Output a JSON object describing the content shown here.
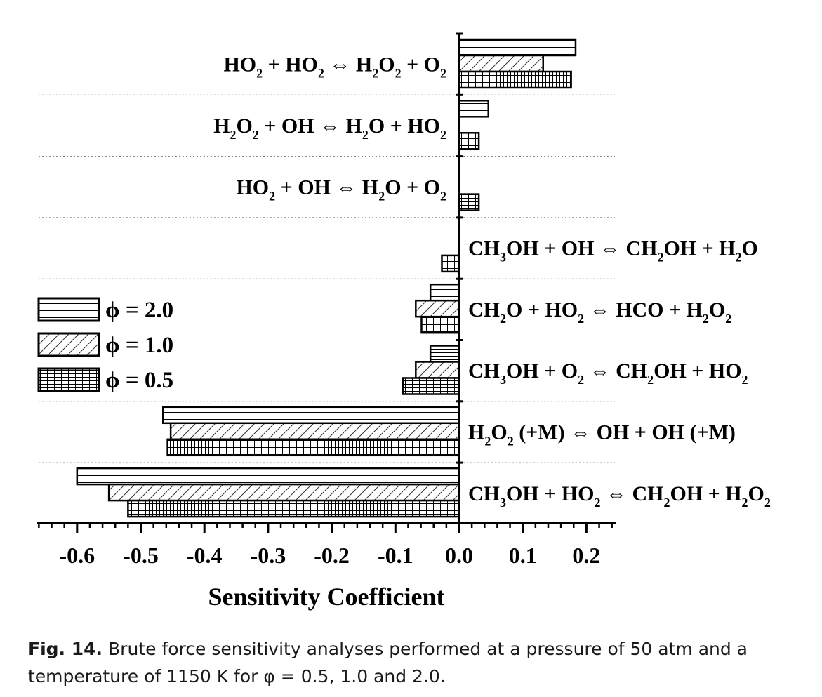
{
  "chart_data": {
    "type": "bar",
    "orientation": "horizontal",
    "xlabel": "Sensitivity Coefficient",
    "xlim": [
      -0.67,
      0.25
    ],
    "xticks": [
      "-0.6",
      "-0.5",
      "-0.4",
      "-0.3",
      "-0.2",
      "-0.1",
      "0.0",
      "0.1",
      "0.2"
    ],
    "grid": "dotted separators between reactions",
    "legend_position": "left",
    "categories": [
      "HO2 + HO2 ⇔ H2O2 + O2",
      "H2O2 + OH ⇔ H2O + HO2",
      "HO2 + OH ⇔ H2O + O2",
      "CH3OH + OH ⇔ CH2OH + H2O",
      "CH2O + HO2 ⇔ HCO + H2O2",
      "CH3OH + O2 ⇔ CH2OH + HO2",
      "H2O2 (+M) ⇔ OH + OH (+M)",
      "CH3OH + HO2 ⇔ CH2OH + H2O2"
    ],
    "series": [
      {
        "name": "ϕ = 2.0",
        "pattern": "horizontal-lines",
        "values": [
          0.183,
          0.046,
          0.0,
          0.0,
          -0.045,
          -0.045,
          -0.465,
          -0.6
        ]
      },
      {
        "name": "ϕ = 1.0",
        "pattern": "diagonal-hatch",
        "values": [
          0.132,
          0.0,
          0.0,
          0.0,
          -0.068,
          -0.068,
          -0.453,
          -0.55
        ]
      },
      {
        "name": "ϕ = 0.5",
        "pattern": "grid",
        "values": [
          0.176,
          0.031,
          0.031,
          -0.027,
          -0.059,
          -0.088,
          -0.458,
          -0.52
        ]
      }
    ]
  },
  "caption": {
    "label": "Fig. 14.",
    "text": "Brute force sensitivity analyses performed at a pressure of 50 atm and a temperature of 1150 K for φ = 0.5, 1.0 and 2.0."
  }
}
